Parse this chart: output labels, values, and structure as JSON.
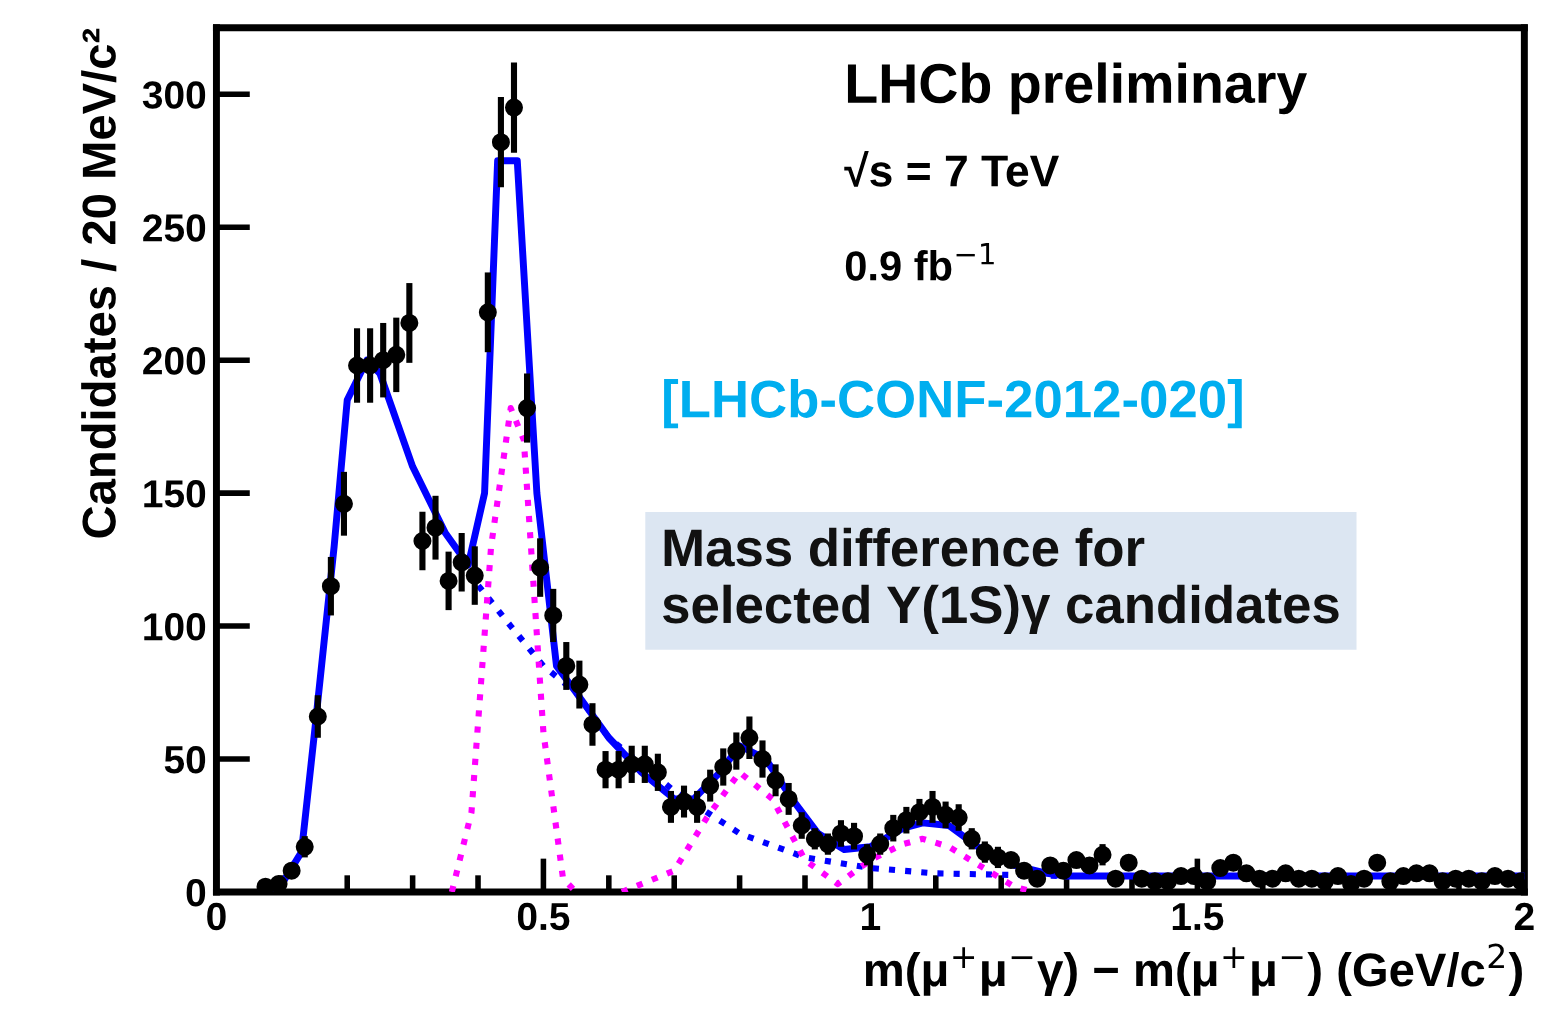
{
  "chart_data": {
    "type": "scatter",
    "xlabel": "m(μ$^{+}$μ$^{−}$γ) − m(μ$^{+}$μ$^{−}$) (GeV/c$^{2}$)",
    "ylabel": "Candidates / 20 MeV/c²",
    "annotations": [
      "LHCb preliminary",
      "√s = 7 TeV",
      "0.9 fb$^{−1}$",
      "[LHCb-CONF-2012-020]",
      "Mass difference for\nselected Υ(1S)γ candidates"
    ],
    "xlim": [
      0,
      2
    ],
    "ylim": [
      0,
      325
    ],
    "xticks": [
      0,
      0.5,
      1,
      1.5,
      2
    ],
    "yticks": [
      0,
      50,
      100,
      150,
      200,
      250,
      300
    ],
    "grid": false,
    "legend": false,
    "series": [
      {
        "type": "line",
        "color": "#0000ff",
        "line_style": "solid",
        "marker": "none",
        "x": [
          0.07,
          0.1,
          0.13,
          0.15,
          0.18,
          0.2,
          0.23,
          0.25,
          0.3,
          0.35,
          0.385,
          0.41,
          0.43,
          0.46,
          0.49,
          0.52,
          0.55,
          0.6,
          0.65,
          0.7,
          0.73,
          0.77,
          0.8,
          0.84,
          0.88,
          0.92,
          0.96,
          1.0,
          1.05,
          1.08,
          1.12,
          1.17,
          1.22,
          1.27,
          1.3,
          1.5,
          2.0
        ],
        "values": [
          0,
          3,
          15,
          60,
          130,
          185,
          200,
          195,
          160,
          135,
          123,
          150,
          275,
          275,
          150,
          85,
          75,
          58,
          45,
          35,
          35,
          45,
          55,
          50,
          35,
          22,
          16,
          17,
          24,
          26,
          25,
          16,
          10,
          7,
          6,
          6,
          6
        ]
      },
      {
        "type": "line",
        "color": "#0000ff",
        "line_style": "dotted",
        "marker": "none",
        "x": [
          0.385,
          0.45,
          0.5,
          0.55,
          0.6,
          0.7,
          0.8,
          0.9,
          1.0,
          1.1,
          1.3,
          2.0
        ],
        "values": [
          120,
          100,
          85,
          75,
          58,
          38,
          22,
          13,
          9,
          7,
          6,
          6
        ]
      },
      {
        "type": "line",
        "color": "#ff00ff",
        "line_style": "dotted",
        "marker": "none",
        "x": [
          0.36,
          0.39,
          0.42,
          0.45,
          0.47,
          0.5,
          0.53,
          0.55,
          0.58,
          0.62,
          0.7,
          0.75,
          0.8,
          0.85,
          0.9,
          0.95,
          1.0,
          1.05,
          1.08,
          1.12,
          1.18,
          1.22,
          1.25
        ],
        "values": [
          0,
          30,
          130,
          182,
          170,
          60,
          5,
          0,
          null,
          0,
          8,
          28,
          45,
          35,
          12,
          3,
          12,
          18,
          20,
          17,
          8,
          2,
          0
        ]
      },
      {
        "color": "#000000",
        "marker": "circle",
        "x": [
          0.075,
          0.095,
          0.115,
          0.135,
          0.155,
          0.175,
          0.195,
          0.215,
          0.235,
          0.255,
          0.275,
          0.295,
          0.315,
          0.335,
          0.355,
          0.375,
          0.395,
          0.415,
          0.435,
          0.455,
          0.475,
          0.495,
          0.515,
          0.535,
          0.555,
          0.575,
          0.595,
          0.615,
          0.635,
          0.655,
          0.675,
          0.695,
          0.715,
          0.735,
          0.755,
          0.775,
          0.795,
          0.815,
          0.835,
          0.855,
          0.875,
          0.895,
          0.915,
          0.935,
          0.955,
          0.975,
          0.995,
          1.015,
          1.035,
          1.055,
          1.075,
          1.095,
          1.115,
          1.135,
          1.155,
          1.175,
          1.195,
          1.215,
          1.235,
          1.255,
          1.275,
          1.295,
          1.315,
          1.335,
          1.355,
          1.375,
          1.395,
          1.415,
          1.435,
          1.455,
          1.475,
          1.495,
          1.515,
          1.535,
          1.555,
          1.575,
          1.595,
          1.615,
          1.635,
          1.655,
          1.675,
          1.695,
          1.715,
          1.735,
          1.755,
          1.775,
          1.795,
          1.815,
          1.835,
          1.855,
          1.875,
          1.895,
          1.915,
          1.935,
          1.955,
          1.975,
          1.995
        ],
        "values": [
          2,
          3,
          8,
          17,
          66,
          115,
          146,
          198,
          198,
          200,
          202,
          214,
          132,
          137,
          117,
          124,
          119,
          218,
          282,
          295,
          182,
          122,
          104,
          85,
          78,
          63,
          46,
          46,
          48,
          48,
          45,
          32,
          34,
          32,
          40,
          47,
          53,
          58,
          50,
          42,
          35,
          25,
          20,
          18,
          22,
          21,
          14,
          18,
          24,
          27,
          30,
          32,
          29,
          28,
          20,
          15,
          13,
          12,
          8,
          5,
          10,
          8,
          12,
          10,
          14,
          5,
          11,
          5,
          4,
          4,
          6,
          6,
          4,
          9,
          11,
          7,
          5,
          5,
          7,
          5,
          5,
          4,
          6,
          3,
          5,
          11,
          4,
          6,
          7,
          7,
          4,
          5,
          5,
          4,
          6,
          5,
          4
        ],
        "errors": [
          1,
          2,
          3,
          4,
          8,
          11,
          12,
          14,
          14,
          14,
          14,
          15,
          11,
          12,
          11,
          11,
          11,
          15,
          17,
          17,
          13,
          11,
          10,
          9,
          9,
          8,
          7,
          7,
          7,
          7,
          7,
          6,
          6,
          6,
          6,
          7,
          7,
          8,
          7,
          6,
          6,
          5,
          4,
          4,
          5,
          5,
          4,
          4,
          5,
          5,
          5,
          6,
          5,
          5,
          4,
          4,
          4,
          3,
          3,
          2,
          3,
          3,
          3,
          3,
          4,
          2,
          3,
          2,
          2,
          2,
          2,
          2,
          2,
          3,
          3,
          3,
          2,
          2,
          3,
          2,
          2,
          2,
          2,
          2,
          2,
          3,
          2,
          2,
          3,
          3,
          2,
          2,
          2,
          2,
          2,
          2,
          2
        ]
      }
    ]
  }
}
